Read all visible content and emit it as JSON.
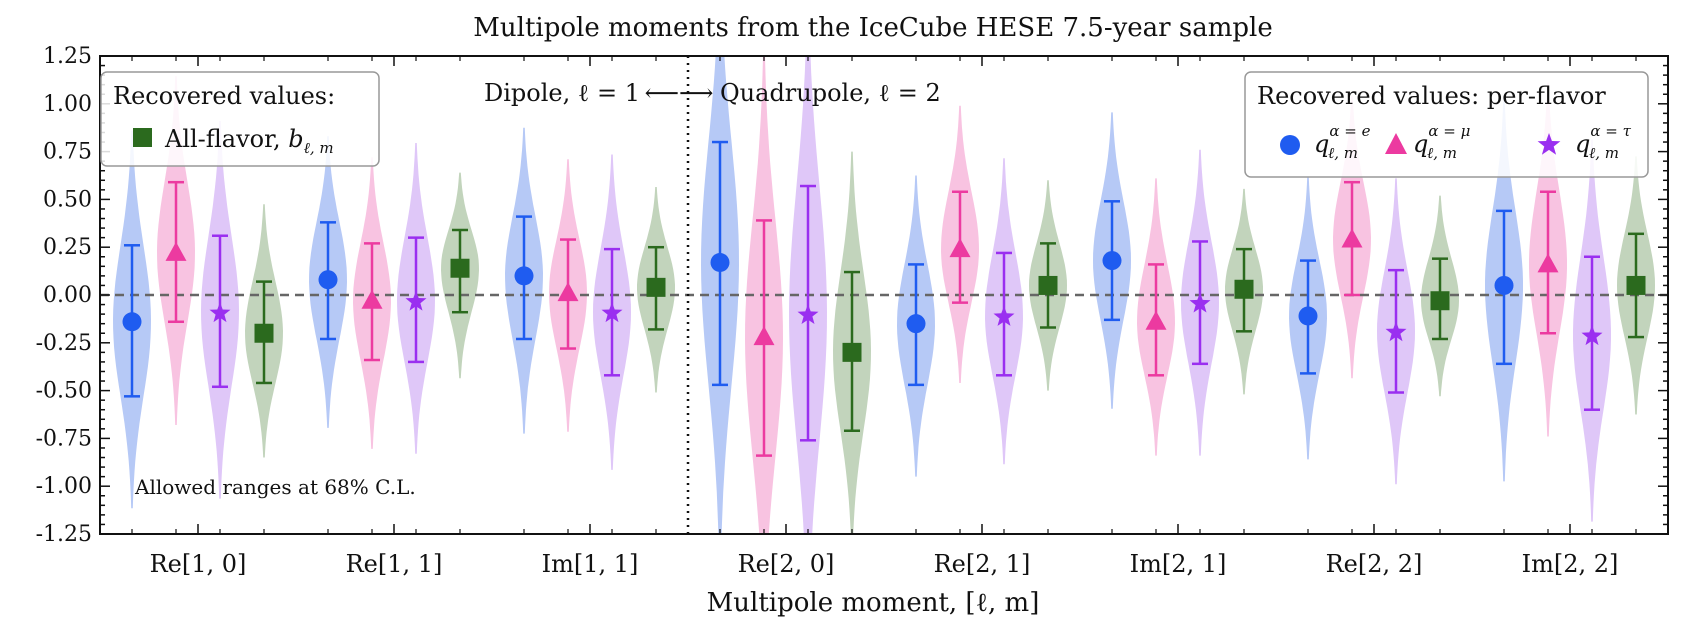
{
  "chart_data": {
    "type": "violin",
    "title": "Multipole moments from the IceCube HESE 7.5-year sample",
    "xlabel": "Multipole moment, [ℓ, m]",
    "ylabel": "",
    "ylim": [
      -1.25,
      1.25
    ],
    "yticks": [
      1.25,
      1.0,
      0.75,
      0.5,
      0.25,
      0.0,
      -0.25,
      -0.5,
      -0.75,
      -1.0,
      -1.25
    ],
    "ytick_labels": [
      "1.25",
      "1.00",
      "0.75",
      "0.50",
      "0.25",
      "0.00",
      "-0.25",
      "-0.50",
      "-0.75",
      "-1.00",
      "-1.25"
    ],
    "categories": [
      "Re[1, 0]",
      "Re[1, 1]",
      "Im[1, 1]",
      "Re[2, 0]",
      "Re[2, 1]",
      "Im[2, 1]",
      "Re[2, 2]",
      "Im[2, 2]"
    ],
    "reference_line_y": 0.0,
    "divider_after_category": 2,
    "divider_label_left": "Dipole, ℓ = 1",
    "divider_arrow": "⟵⟶",
    "divider_label_right": "Quadrupole, ℓ = 2",
    "annotation": "Allowed ranges at 68% C.L.",
    "legend_left": {
      "title": "Recovered values:",
      "entries": [
        {
          "marker": "square",
          "label": "All-flavor, ",
          "symbol": "b",
          "subscript": "ℓ, m"
        }
      ]
    },
    "legend_right": {
      "title": "Recovered values: per-flavor",
      "entries": [
        {
          "marker": "circle",
          "symbol": "q",
          "subscript": "ℓ, m",
          "superscript": "α = e"
        },
        {
          "marker": "triangle",
          "symbol": "q",
          "subscript": "ℓ, m",
          "superscript": "α = μ"
        },
        {
          "marker": "star",
          "symbol": "q",
          "subscript": "ℓ, m",
          "superscript": "α = τ"
        }
      ]
    },
    "series": [
      {
        "name": "e",
        "marker": "circle",
        "color": "#1f5cf0",
        "fill": "#a9bff4",
        "center": [
          -0.14,
          0.08,
          0.1,
          0.17,
          -0.15,
          0.18,
          -0.11,
          0.05
        ],
        "lower": [
          -0.53,
          -0.23,
          -0.23,
          -0.47,
          -0.47,
          -0.13,
          -0.41,
          -0.36
        ],
        "upper": [
          0.26,
          0.38,
          0.41,
          0.8,
          0.16,
          0.49,
          0.18,
          0.44
        ]
      },
      {
        "name": "mu",
        "marker": "triangle",
        "color": "#ec3aa0",
        "fill": "#f7b9dc",
        "center": [
          0.22,
          -0.03,
          0.01,
          -0.22,
          0.24,
          -0.14,
          0.29,
          0.16
        ],
        "lower": [
          -0.14,
          -0.34,
          -0.28,
          -0.84,
          -0.04,
          -0.42,
          0.0,
          -0.2
        ],
        "upper": [
          0.59,
          0.27,
          0.29,
          0.39,
          0.54,
          0.16,
          0.59,
          0.54
        ]
      },
      {
        "name": "tau",
        "marker": "star",
        "color": "#9a2ff0",
        "fill": "#d9bdf7",
        "center": [
          -0.09,
          -0.03,
          -0.09,
          -0.1,
          -0.11,
          -0.04,
          -0.19,
          -0.21
        ],
        "lower": [
          -0.48,
          -0.35,
          -0.42,
          -0.76,
          -0.42,
          -0.36,
          -0.51,
          -0.6
        ],
        "upper": [
          0.31,
          0.3,
          0.24,
          0.57,
          0.22,
          0.28,
          0.13,
          0.2
        ]
      },
      {
        "name": "all-flavor",
        "marker": "square",
        "color": "#2b6a1e",
        "fill": "#b7cdb0",
        "center": [
          -0.2,
          0.14,
          0.04,
          -0.3,
          0.05,
          0.03,
          -0.03,
          0.05
        ],
        "lower": [
          -0.46,
          -0.09,
          -0.18,
          -0.71,
          -0.17,
          -0.19,
          -0.23,
          -0.22
        ],
        "upper": [
          0.07,
          0.34,
          0.25,
          0.12,
          0.27,
          0.24,
          0.19,
          0.32
        ]
      }
    ]
  }
}
